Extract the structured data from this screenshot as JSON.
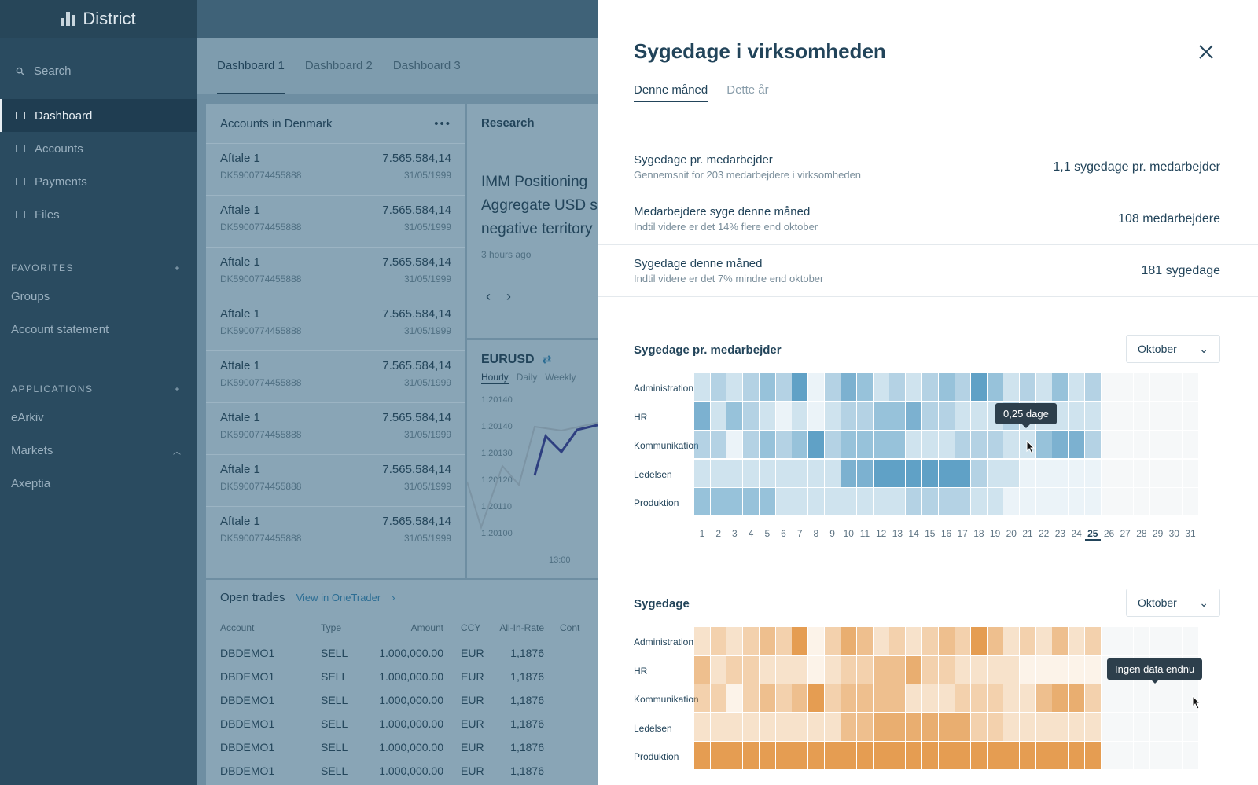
{
  "sidebar": {
    "brand": "District",
    "search_placeholder": "Search",
    "nav": [
      {
        "label": "Dashboard",
        "active": true
      },
      {
        "label": "Accounts"
      },
      {
        "label": "Payments"
      },
      {
        "label": "Files"
      }
    ],
    "favorites_title": "FAVORITES",
    "favorites": [
      "Groups",
      "Account statement"
    ],
    "applications_title": "APPLICATIONS",
    "applications": [
      "eArkiv",
      "Markets",
      "Axeptia"
    ]
  },
  "dash": {
    "tabs": [
      "Dashboard 1",
      "Dashboard 2",
      "Dashboard 3"
    ],
    "accounts": {
      "title": "Accounts in Denmark",
      "rows": [
        {
          "name": "Aftale 1",
          "acct": "DK5900774455888",
          "amount": "7.565.584,14",
          "date": "31/05/1999"
        },
        {
          "name": "Aftale 1",
          "acct": "DK5900774455888",
          "amount": "7.565.584,14",
          "date": "31/05/1999"
        },
        {
          "name": "Aftale 1",
          "acct": "DK5900774455888",
          "amount": "7.565.584,14",
          "date": "31/05/1999"
        },
        {
          "name": "Aftale 1",
          "acct": "DK5900774455888",
          "amount": "7.565.584,14",
          "date": "31/05/1999"
        },
        {
          "name": "Aftale 1",
          "acct": "DK5900774455888",
          "amount": "7.565.584,14",
          "date": "31/05/1999"
        },
        {
          "name": "Aftale 1",
          "acct": "DK5900774455888",
          "amount": "7.565.584,14",
          "date": "31/05/1999"
        },
        {
          "name": "Aftale 1",
          "acct": "DK5900774455888",
          "amount": "7.565.584,14",
          "date": "31/05/1999"
        },
        {
          "name": "Aftale 1",
          "acct": "DK5900774455888",
          "amount": "7.565.584,14",
          "date": "31/05/1999"
        }
      ]
    },
    "research": {
      "title": "Research",
      "headline_lines": [
        "IMM Positioning",
        "Aggregate USD s",
        "negative territory"
      ],
      "time": "3 hours ago"
    },
    "eurusd": {
      "title": "EURUSD",
      "tabs": [
        "Hourly",
        "Daily",
        "Weekly"
      ],
      "yticks": [
        "1.20140",
        "1.20140",
        "1.20130",
        "1.20120",
        "1.20110",
        "1.20100"
      ],
      "xtick": "13:00"
    },
    "trades": {
      "title": "Open trades",
      "link": "View in OneTrader",
      "headers": [
        "Account",
        "Type",
        "Amount",
        "CCY",
        "All-In-Rate",
        "Cont"
      ],
      "rows": [
        [
          "DBDEMO1",
          "SELL",
          "1.000,000.00",
          "EUR",
          "1,1876"
        ],
        [
          "DBDEMO1",
          "SELL",
          "1.000,000.00",
          "EUR",
          "1,1876"
        ],
        [
          "DBDEMO1",
          "SELL",
          "1.000,000.00",
          "EUR",
          "1,1876"
        ],
        [
          "DBDEMO1",
          "SELL",
          "1.000,000.00",
          "EUR",
          "1,1876"
        ],
        [
          "DBDEMO1",
          "SELL",
          "1.000,000.00",
          "EUR",
          "1,1876"
        ],
        [
          "DBDEMO1",
          "SELL",
          "1.000,000.00",
          "EUR",
          "1,1876"
        ]
      ]
    }
  },
  "drawer": {
    "title": "Sygedage i virksomheden",
    "tabs": [
      "Denne måned",
      "Dette år"
    ],
    "stats": [
      {
        "title": "Sygedage pr. medarbejder",
        "sub": "Gennemsnit for 203 medarbejdere i virksomheden",
        "value": "1,1 sygedage pr. medarbejder"
      },
      {
        "title": "Medarbejdere syge denne måned",
        "sub": "Indtil videre er det 14% flere end oktober",
        "value": "108 medarbejdere"
      },
      {
        "title": "Sygedage denne måned",
        "sub": "Indtil videre er det 7% mindre end oktober",
        "value": "181 sygedage"
      }
    ],
    "heatmap1": {
      "title": "Sygedage pr. medarbejder",
      "month": "Oktober",
      "tooltip": "0,25 dage",
      "color": "#5b9ec4"
    },
    "heatmap2": {
      "title": "Sygedage",
      "month": "Oktober",
      "tooltip": "Ingen data endnu",
      "color": "#e49a4c"
    },
    "rows": [
      "Administration",
      "HR",
      "Kommunikation",
      "Ledelsen",
      "Produktion"
    ],
    "days": [
      "1",
      "2",
      "3",
      "4",
      "5",
      "6",
      "7",
      "8",
      "9",
      "10",
      "11",
      "12",
      "13",
      "14",
      "15",
      "16",
      "17",
      "18",
      "19",
      "20",
      "21",
      "22",
      "23",
      "24",
      "25",
      "26",
      "27",
      "28",
      "29",
      "30",
      "31"
    ],
    "current_day": "25"
  },
  "chart_data": [
    {
      "type": "heatmap",
      "title": "Sygedage pr. medarbejder",
      "x": "days 1-31",
      "rows": [
        "Administration",
        "HR",
        "Kommunikation",
        "Ledelsen",
        "Produktion"
      ],
      "values": [
        [
          1,
          2,
          1,
          2,
          3,
          2,
          5,
          0,
          2,
          4,
          3,
          1,
          2,
          1,
          2,
          3,
          2,
          5,
          3,
          1,
          2,
          1,
          3,
          1,
          2
        ],
        [
          4,
          1,
          3,
          2,
          1,
          0,
          1,
          0,
          1,
          2,
          2,
          3,
          3,
          4,
          2,
          2,
          1,
          1,
          1,
          2,
          1,
          1,
          1,
          1,
          1
        ],
        [
          2,
          2,
          0,
          2,
          3,
          2,
          3,
          5,
          2,
          3,
          3,
          3,
          3,
          1,
          1,
          1,
          2,
          2,
          2,
          1,
          1,
          3,
          4,
          4,
          2
        ],
        [
          1,
          1,
          1,
          1,
          1,
          1,
          1,
          1,
          1,
          4,
          4,
          5,
          5,
          5,
          5,
          5,
          5,
          2,
          1,
          1,
          0,
          0,
          0,
          0,
          0
        ],
        [
          3,
          3,
          3,
          3,
          3,
          1,
          1,
          1,
          1,
          1,
          1,
          1,
          1,
          2,
          2,
          2,
          2,
          1,
          1,
          0,
          0,
          0,
          0,
          0,
          0
        ]
      ]
    },
    {
      "type": "heatmap",
      "title": "Sygedage",
      "x": "days 1-31",
      "rows": [
        "Administration",
        "HR",
        "Kommunikation",
        "Ledelsen",
        "Produktion"
      ],
      "values": [
        [
          1,
          2,
          1,
          2,
          3,
          2,
          5,
          0,
          2,
          4,
          3,
          1,
          2,
          1,
          2,
          3,
          2,
          5,
          3,
          1,
          2,
          1,
          3,
          1,
          2
        ],
        [
          3,
          1,
          2,
          2,
          1,
          1,
          1,
          0,
          1,
          2,
          2,
          3,
          3,
          4,
          2,
          2,
          1,
          1,
          1,
          1,
          0,
          0,
          0,
          0,
          0
        ],
        [
          2,
          2,
          0,
          2,
          3,
          2,
          3,
          5,
          2,
          3,
          3,
          3,
          3,
          1,
          1,
          1,
          2,
          2,
          2,
          1,
          1,
          3,
          4,
          4,
          2
        ],
        [
          1,
          1,
          1,
          1,
          1,
          1,
          1,
          1,
          1,
          3,
          3,
          4,
          4,
          4,
          4,
          4,
          4,
          2,
          2,
          1,
          1,
          1,
          1,
          1,
          1
        ],
        [
          5,
          5,
          5,
          5,
          5,
          5,
          5,
          5,
          5,
          5,
          5,
          5,
          5,
          5,
          5,
          5,
          5,
          5,
          5,
          5,
          5,
          5,
          5,
          5,
          5
        ]
      ]
    }
  ]
}
